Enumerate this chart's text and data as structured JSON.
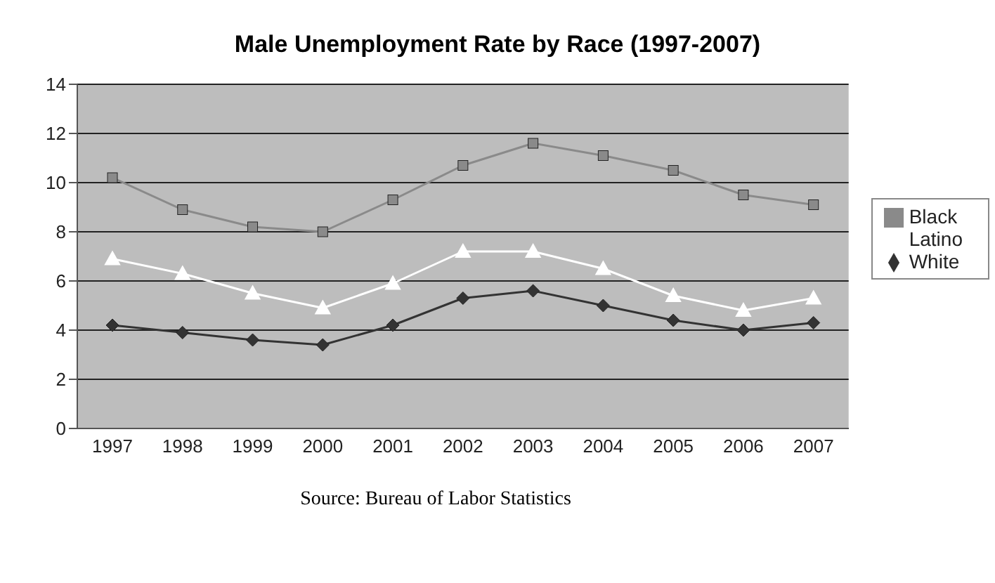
{
  "chart_data": {
    "type": "line",
    "title": "Male Unemployment Rate by Race (1997-2007)",
    "categories": [
      "1997",
      "1998",
      "1999",
      "2000",
      "2001",
      "2002",
      "2003",
      "2004",
      "2005",
      "2006",
      "2007"
    ],
    "series": [
      {
        "name": "White",
        "color": "#333333",
        "marker": "diamond",
        "values": [
          4.2,
          3.9,
          3.6,
          3.4,
          4.2,
          5.3,
          5.6,
          5.0,
          4.4,
          4.0,
          4.3
        ]
      },
      {
        "name": "Black",
        "color": "#8a8a8a",
        "marker": "square",
        "values": [
          10.2,
          8.9,
          8.2,
          8.0,
          9.3,
          10.7,
          11.6,
          11.1,
          10.5,
          9.5,
          9.1
        ]
      },
      {
        "name": "Latino",
        "color": "#ffffff",
        "marker": "triangle",
        "values": [
          6.9,
          6.3,
          5.5,
          4.9,
          5.9,
          7.2,
          7.2,
          6.5,
          5.4,
          4.8,
          5.3
        ]
      }
    ],
    "ylim": [
      0,
      14
    ],
    "yticks": [
      0,
      2,
      4,
      6,
      8,
      10,
      12,
      14
    ],
    "grid": "y",
    "legend": "right",
    "annotations": [
      "Source:  Bureau of Labor Statistics"
    ]
  }
}
